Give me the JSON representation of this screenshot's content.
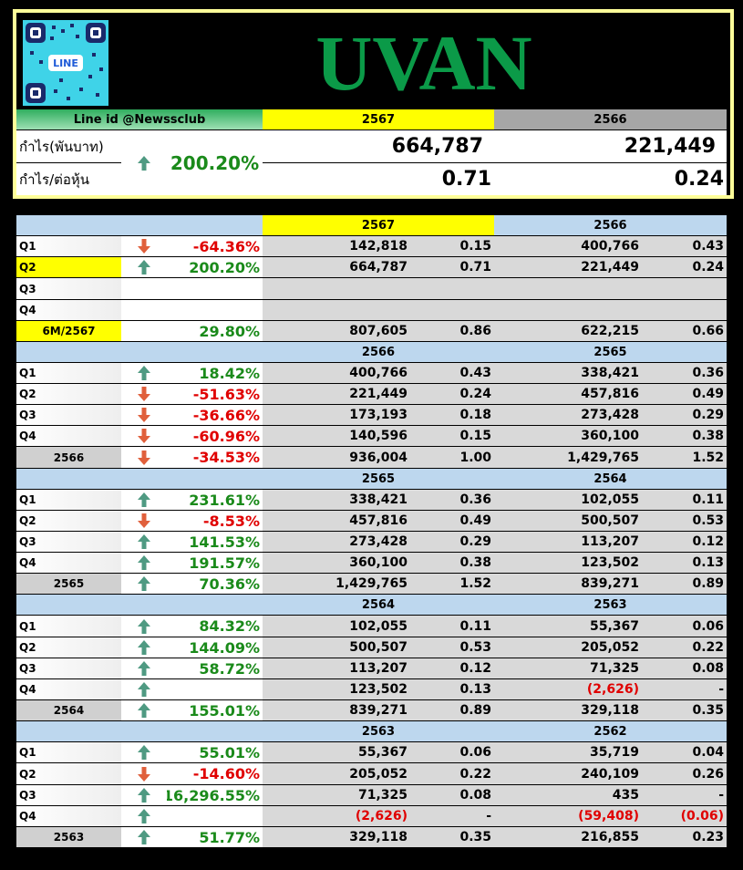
{
  "header": {
    "qr_label": "LINE",
    "title": "UVAN",
    "line_id": "Line id @Newssclub",
    "years": [
      "2567",
      "2566"
    ],
    "metrics": [
      "กำไร(พันบาท)",
      "กำไร/ต่อหุ้น"
    ],
    "trend": "up",
    "change": "200.20%",
    "profit": [
      "664,787",
      "221,449"
    ],
    "eps": [
      "0.71",
      "0.24"
    ]
  },
  "sections": [
    {
      "years": [
        "2567",
        "2566"
      ],
      "rows": [
        {
          "label": "Q1",
          "trend": "down",
          "change": "-64.36%",
          "cells": [
            "142,818",
            "0.15",
            "400,766",
            "0.43"
          ]
        },
        {
          "label": "Q2",
          "trend": "up",
          "change": "200.20%",
          "cells": [
            "664,787",
            "0.71",
            "221,449",
            "0.24"
          ]
        },
        {
          "label": "Q3",
          "trend": null,
          "change": null,
          "cells": [
            null,
            null,
            null,
            null
          ]
        },
        {
          "label": "Q4",
          "trend": null,
          "change": null,
          "cells": [
            null,
            null,
            null,
            null
          ]
        },
        {
          "label": "6M/2567",
          "trend": null,
          "change": "29.80%",
          "cells": [
            "807,605",
            "0.86",
            "622,215",
            "0.66"
          ]
        }
      ]
    },
    {
      "years": [
        "2566",
        "2565"
      ],
      "rows": [
        {
          "label": "Q1",
          "trend": "up",
          "change": "18.42%",
          "cells": [
            "400,766",
            "0.43",
            "338,421",
            "0.36"
          ]
        },
        {
          "label": "Q2",
          "trend": "down",
          "change": "-51.63%",
          "cells": [
            "221,449",
            "0.24",
            "457,816",
            "0.49"
          ]
        },
        {
          "label": "Q3",
          "trend": "down",
          "change": "-36.66%",
          "cells": [
            "173,193",
            "0.18",
            "273,428",
            "0.29"
          ]
        },
        {
          "label": "Q4",
          "trend": "down",
          "change": "-60.96%",
          "cells": [
            "140,596",
            "0.15",
            "360,100",
            "0.38"
          ]
        },
        {
          "label": "2566",
          "trend": "down",
          "change": "-34.53%",
          "cells": [
            "936,004",
            "1.00",
            "1,429,765",
            "1.52"
          ]
        }
      ]
    },
    {
      "years": [
        "2565",
        "2564"
      ],
      "rows": [
        {
          "label": "Q1",
          "trend": "up",
          "change": "231.61%",
          "cells": [
            "338,421",
            "0.36",
            "102,055",
            "0.11"
          ]
        },
        {
          "label": "Q2",
          "trend": "down",
          "change": "-8.53%",
          "cells": [
            "457,816",
            "0.49",
            "500,507",
            "0.53"
          ]
        },
        {
          "label": "Q3",
          "trend": "up",
          "change": "141.53%",
          "cells": [
            "273,428",
            "0.29",
            "113,207",
            "0.12"
          ]
        },
        {
          "label": "Q4",
          "trend": "up",
          "change": "191.57%",
          "cells": [
            "360,100",
            "0.38",
            "123,502",
            "0.13"
          ]
        },
        {
          "label": "2565",
          "trend": "up",
          "change": "70.36%",
          "cells": [
            "1,429,765",
            "1.52",
            "839,271",
            "0.89"
          ]
        }
      ]
    },
    {
      "years": [
        "2564",
        "2563"
      ],
      "rows": [
        {
          "label": "Q1",
          "trend": "up",
          "change": "84.32%",
          "cells": [
            "102,055",
            "0.11",
            "55,367",
            "0.06"
          ]
        },
        {
          "label": "Q2",
          "trend": "up",
          "change": "144.09%",
          "cells": [
            "500,507",
            "0.53",
            "205,052",
            "0.22"
          ]
        },
        {
          "label": "Q3",
          "trend": "up",
          "change": "58.72%",
          "cells": [
            "113,207",
            "0.12",
            "71,325",
            "0.08"
          ]
        },
        {
          "label": "Q4",
          "trend": "up",
          "change": null,
          "cells": [
            "123,502",
            "0.13",
            "(2,626)",
            "-"
          ]
        },
        {
          "label": "2564",
          "trend": "up",
          "change": "155.01%",
          "cells": [
            "839,271",
            "0.89",
            "329,118",
            "0.35"
          ]
        }
      ]
    },
    {
      "years": [
        "2563",
        "2562"
      ],
      "rows": [
        {
          "label": "Q1",
          "trend": "up",
          "change": "55.01%",
          "cells": [
            "55,367",
            "0.06",
            "35,719",
            "0.04"
          ]
        },
        {
          "label": "Q2",
          "trend": "down",
          "change": "-14.60%",
          "cells": [
            "205,052",
            "0.22",
            "240,109",
            "0.26"
          ]
        },
        {
          "label": "Q3",
          "trend": "up",
          "change": "16,296.55%",
          "cells": [
            "71,325",
            "0.08",
            "435",
            "-"
          ]
        },
        {
          "label": "Q4",
          "trend": "up",
          "change": null,
          "cells": [
            "(2,626)",
            "-",
            "(59,408)",
            "(0.06)"
          ]
        },
        {
          "label": "2563",
          "trend": "up",
          "change": "51.77%",
          "cells": [
            "329,118",
            "0.35",
            "216,855",
            "0.23"
          ]
        }
      ]
    }
  ]
}
